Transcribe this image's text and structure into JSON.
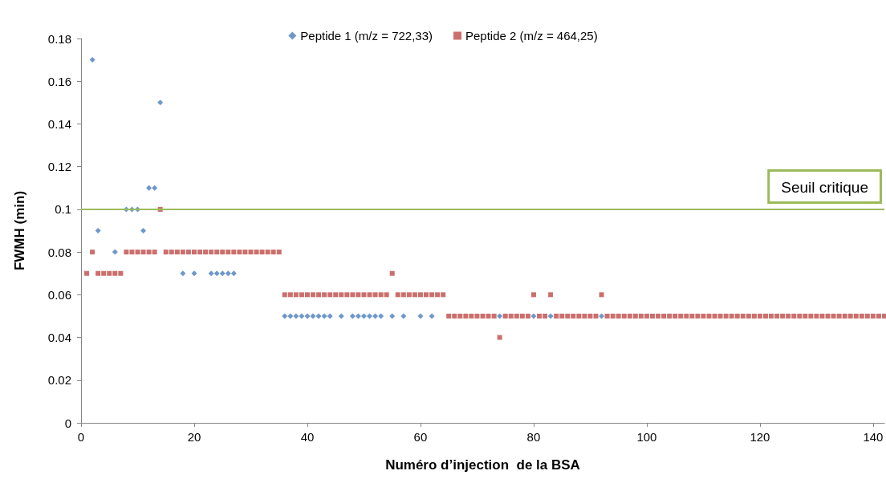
{
  "chart_data": {
    "type": "scatter",
    "xlabel": "Numéro d’injection  de la BSA",
    "ylabel": "FWMH (min)",
    "xlim": [
      0,
      142
    ],
    "xticks": [
      0,
      20,
      40,
      60,
      80,
      100,
      120,
      140
    ],
    "ylim": [
      0,
      0.18
    ],
    "yticks": [
      0,
      0.02,
      0.04,
      0.06,
      0.08,
      0.1,
      0.12,
      0.14,
      0.16,
      0.18
    ],
    "grid": false,
    "legend": "top",
    "ref_lines": [
      {
        "axis": "y",
        "value": 0.1,
        "label": "Seuil critique",
        "color": "#9bbb59",
        "line_style": "solid"
      }
    ],
    "series": [
      {
        "name": "Peptide 1 (m/z = 722,33)",
        "color": "#4a7ebb",
        "marker": "diamond",
        "x": [
          2,
          3,
          6,
          8,
          9,
          10,
          11,
          12,
          13,
          14,
          18,
          20,
          23,
          24,
          25,
          26,
          27,
          36,
          37,
          38,
          39,
          40,
          41,
          42,
          43,
          44,
          46,
          48,
          49,
          50,
          51,
          52,
          53,
          55,
          57,
          60,
          62,
          74,
          80,
          83,
          92
        ],
        "values": [
          0.17,
          0.09,
          0.08,
          0.1,
          0.1,
          0.1,
          0.09,
          0.11,
          0.11,
          0.15,
          0.07,
          0.07,
          0.07,
          0.07,
          0.07,
          0.07,
          0.07,
          0.05,
          0.05,
          0.05,
          0.05,
          0.05,
          0.05,
          0.05,
          0.05,
          0.05,
          0.05,
          0.05,
          0.05,
          0.05,
          0.05,
          0.05,
          0.05,
          0.05,
          0.05,
          0.05,
          0.05,
          0.05,
          0.05,
          0.05,
          0.05
        ]
      },
      {
        "name": "Peptide 2 (m/z = 464,25)",
        "color": "#be4b48",
        "marker": "square",
        "x": [
          1,
          2,
          3,
          4,
          5,
          6,
          7,
          8,
          9,
          10,
          11,
          12,
          13,
          14,
          15,
          16,
          17,
          18,
          19,
          20,
          21,
          22,
          23,
          24,
          25,
          26,
          27,
          28,
          29,
          30,
          31,
          32,
          33,
          34,
          35,
          36,
          37,
          38,
          39,
          40,
          41,
          42,
          43,
          44,
          45,
          46,
          47,
          48,
          49,
          50,
          51,
          52,
          53,
          54,
          55,
          56,
          57,
          58,
          59,
          60,
          61,
          62,
          63,
          64,
          65,
          66,
          67,
          68,
          69,
          70,
          71,
          72,
          73,
          74,
          75,
          76,
          77,
          78,
          79,
          80,
          81,
          82,
          83,
          84,
          85,
          86,
          87,
          88,
          89,
          90,
          91,
          92,
          93,
          94,
          95,
          96,
          97,
          98,
          99,
          100,
          101,
          102,
          103,
          104,
          105,
          106,
          107,
          108,
          109,
          110,
          111,
          112,
          113,
          114,
          115,
          116,
          117,
          118,
          119,
          120,
          121,
          122,
          123,
          124,
          125,
          126,
          127,
          128,
          129,
          130,
          131,
          132,
          133,
          134,
          135,
          136,
          137,
          138,
          139,
          140,
          141,
          142
        ],
        "values": [
          0.07,
          0.08,
          0.07,
          0.07,
          0.07,
          0.07,
          0.07,
          0.08,
          0.08,
          0.08,
          0.08,
          0.08,
          0.08,
          0.1,
          0.08,
          0.08,
          0.08,
          0.08,
          0.08,
          0.08,
          0.08,
          0.08,
          0.08,
          0.08,
          0.08,
          0.08,
          0.08,
          0.08,
          0.08,
          0.08,
          0.08,
          0.08,
          0.08,
          0.08,
          0.08,
          0.06,
          0.06,
          0.06,
          0.06,
          0.06,
          0.06,
          0.06,
          0.06,
          0.06,
          0.06,
          0.06,
          0.06,
          0.06,
          0.06,
          0.06,
          0.06,
          0.06,
          0.06,
          0.06,
          0.07,
          0.06,
          0.06,
          0.06,
          0.06,
          0.06,
          0.06,
          0.06,
          0.06,
          0.06,
          0.05,
          0.05,
          0.05,
          0.05,
          0.05,
          0.05,
          0.05,
          0.05,
          0.05,
          0.04,
          0.05,
          0.05,
          0.05,
          0.05,
          0.05,
          0.06,
          0.05,
          0.05,
          0.06,
          0.05,
          0.05,
          0.05,
          0.05,
          0.05,
          0.05,
          0.05,
          0.05,
          0.06,
          0.05,
          0.05,
          0.05,
          0.05,
          0.05,
          0.05,
          0.05,
          0.05,
          0.05,
          0.05,
          0.05,
          0.05,
          0.05,
          0.05,
          0.05,
          0.05,
          0.05,
          0.05,
          0.05,
          0.05,
          0.05,
          0.05,
          0.05,
          0.05,
          0.05,
          0.05,
          0.05,
          0.05,
          0.05,
          0.05,
          0.05,
          0.05,
          0.05,
          0.05,
          0.05,
          0.05,
          0.05,
          0.05,
          0.05,
          0.05,
          0.05,
          0.05,
          0.05,
          0.05,
          0.05,
          0.05,
          0.05,
          0.05,
          0.05,
          0.05
        ]
      }
    ]
  }
}
